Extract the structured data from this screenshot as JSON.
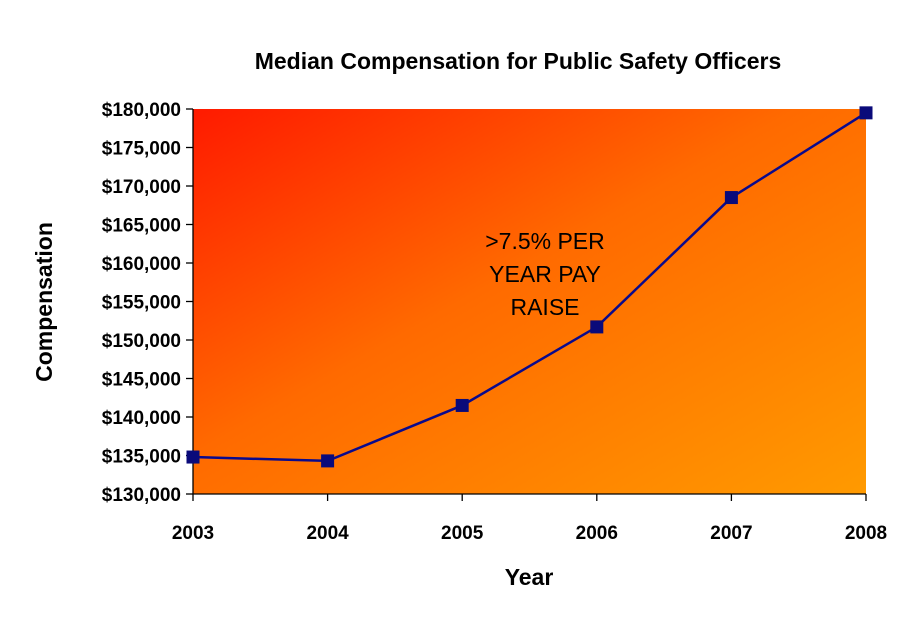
{
  "chart_data": {
    "type": "line",
    "title": "Median Compensation for Public Safety Officers",
    "xlabel": "Year",
    "ylabel": "Compensation",
    "x": [
      "2003",
      "2004",
      "2005",
      "2006",
      "2007",
      "2008"
    ],
    "series": [
      {
        "values": [
          134800,
          134300,
          141500,
          151700,
          168500,
          179500
        ]
      }
    ],
    "ylim": [
      130000,
      180000
    ],
    "yticks": [
      130000,
      135000,
      140000,
      145000,
      150000,
      155000,
      160000,
      165000,
      170000,
      175000,
      180000
    ],
    "ytick_labels": [
      "$130,000",
      "$135,000",
      "$140,000",
      "$145,000",
      "$150,000",
      "$155,000",
      "$160,000",
      "$165,000",
      "$170,000",
      "$175,000",
      "$180,000"
    ],
    "annotation_lines": [
      ">7.5% PER",
      "YEAR PAY",
      "RAISE"
    ],
    "grid": false,
    "legend": "none",
    "colors": {
      "line": "#0a0a8c",
      "marker": "#0a0a7a",
      "plot_bg_top_left": "#ff1a00",
      "plot_bg_mid": "#ff6a00",
      "plot_bg_bottom_right": "#ff9a00"
    }
  }
}
